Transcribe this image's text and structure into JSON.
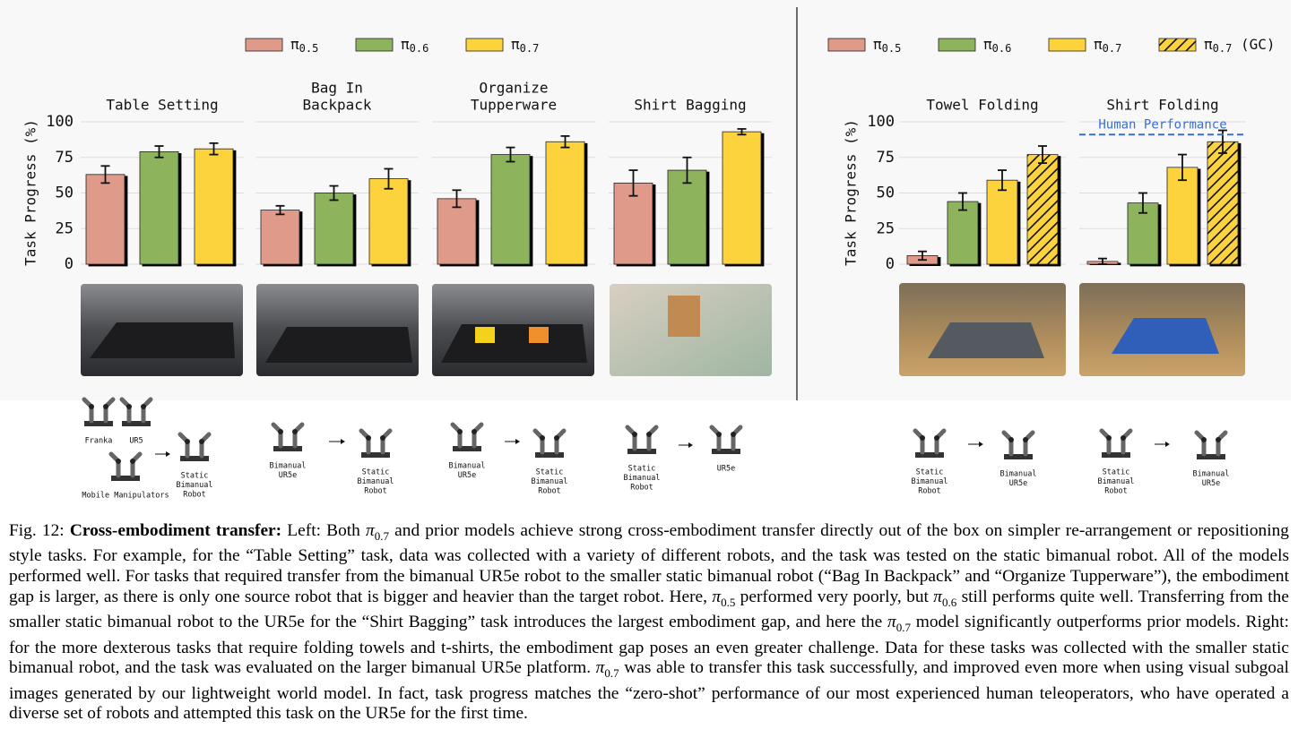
{
  "chart_data": [
    {
      "type": "bar",
      "ylabel": "Task Progress (%)",
      "ylim": [
        0,
        100
      ],
      "yticks": [
        0,
        25,
        50,
        75,
        100
      ],
      "grid": true,
      "legend": "top",
      "series": [
        {
          "name": "π0.5",
          "color": "#e09a8a"
        },
        {
          "name": "π0.6",
          "color": "#8db45c"
        },
        {
          "name": "π0.7",
          "color": "#fdd33c"
        }
      ],
      "panels": [
        {
          "title": [
            "Table Setting"
          ],
          "values": [
            63,
            79,
            81
          ],
          "errors": [
            6,
            4,
            4
          ],
          "embodiment": {
            "sources": [
              [
                "Franka"
              ],
              [
                "UR5"
              ],
              [
                "Mobile Manipulators"
              ]
            ],
            "target": [
              "Static",
              "Bimanual",
              "Robot"
            ]
          }
        },
        {
          "title": [
            "Bag In",
            "Backpack"
          ],
          "values": [
            38,
            50,
            60
          ],
          "errors": [
            3,
            5,
            7
          ],
          "embodiment": {
            "sources": [
              [
                "Bimanual",
                "UR5e"
              ]
            ],
            "target": [
              "Static",
              "Bimanual",
              "Robot"
            ]
          }
        },
        {
          "title": [
            "Organize",
            "Tupperware"
          ],
          "values": [
            46,
            77,
            86
          ],
          "errors": [
            6,
            5,
            4
          ],
          "embodiment": {
            "sources": [
              [
                "Bimanual",
                "UR5e"
              ]
            ],
            "target": [
              "Static",
              "Bimanual",
              "Robot"
            ]
          }
        },
        {
          "title": [
            "Shirt Bagging"
          ],
          "values": [
            57,
            66,
            93
          ],
          "errors": [
            9,
            9,
            2
          ],
          "embodiment": {
            "sources": [
              [
                "Static",
                "Bimanual",
                "Robot"
              ]
            ],
            "target": [
              "UR5e"
            ]
          }
        }
      ]
    },
    {
      "type": "bar",
      "ylabel": "Task Progress (%)",
      "ylim": [
        0,
        100
      ],
      "yticks": [
        0,
        25,
        50,
        75,
        100
      ],
      "grid": true,
      "legend": "top",
      "series": [
        {
          "name": "π0.5",
          "color": "#e09a8a"
        },
        {
          "name": "π0.6",
          "color": "#8db45c"
        },
        {
          "name": "π0.7",
          "color": "#fdd33c"
        },
        {
          "name": "π0.7 (GC)",
          "color": "#fdd33c",
          "hatch": true
        }
      ],
      "panels": [
        {
          "title": [
            "Towel Folding"
          ],
          "values": [
            6,
            44,
            59,
            77
          ],
          "errors": [
            3,
            6,
            7,
            6
          ],
          "embodiment": {
            "sources": [
              [
                "Static",
                "Bimanual",
                "Robot"
              ]
            ],
            "target": [
              "Bimanual",
              "UR5e"
            ]
          }
        },
        {
          "title": [
            "Shirt Folding"
          ],
          "values": [
            2,
            43,
            68,
            86
          ],
          "errors": [
            2,
            7,
            9,
            8
          ],
          "reference": {
            "label": "Human Performance",
            "value": 91,
            "color": "#3a6fd0"
          },
          "embodiment": {
            "sources": [
              [
                "Static",
                "Bimanual",
                "Robot"
              ]
            ],
            "target": [
              "Bimanual",
              "UR5e"
            ]
          }
        }
      ]
    }
  ],
  "caption": {
    "label": "Fig. 12:",
    "heading": "Cross-embodiment transfer:",
    "runs": [
      " Left: Both ",
      {
        "symbol": "π",
        "sub": "0.7"
      },
      " and prior models achieve strong cross-embodiment transfer directly out of the box on simpler re-arrangement or repositioning style tasks. For example, for the “Table Setting” task, data was collected with a variety of different robots, and the task was tested on the static bimanual robot. All of the models performed well. For tasks that required transfer from the bimanual UR5e robot to the smaller static bimanual robot (“Bag In Backpack” and “Organize Tupperware”), the embodiment gap is larger, as there is only one source robot that is bigger and heavier than the target robot. Here, ",
      {
        "symbol": "π",
        "sub": "0.5"
      },
      " performed very poorly, but ",
      {
        "symbol": "π",
        "sub": "0.6"
      },
      " still performs quite well. Transferring from the smaller static bimanual robot to the UR5e for the “Shirt Bagging” task introduces the largest embodiment gap, and here the ",
      {
        "symbol": "π",
        "sub": "0.7"
      },
      " model significantly outperforms prior models. Right: for the more dexterous tasks that require folding towels and t-shirts, the embodiment gap poses an even greater challenge. Data for these tasks was collected with the smaller static bimanual robot, and the task was evaluated on the larger bimanual UR5e platform. ",
      {
        "symbol": "π",
        "sub": "0.7"
      },
      " was able to transfer this task successfully, and improved even more when using visual subgoal images generated by our lightweight world model. In fact, task progress matches the “zero-shot” performance of our most experienced human teleoperators, who have operated a diverse set of robots and attempted this task on the UR5e for the first time."
    ]
  }
}
